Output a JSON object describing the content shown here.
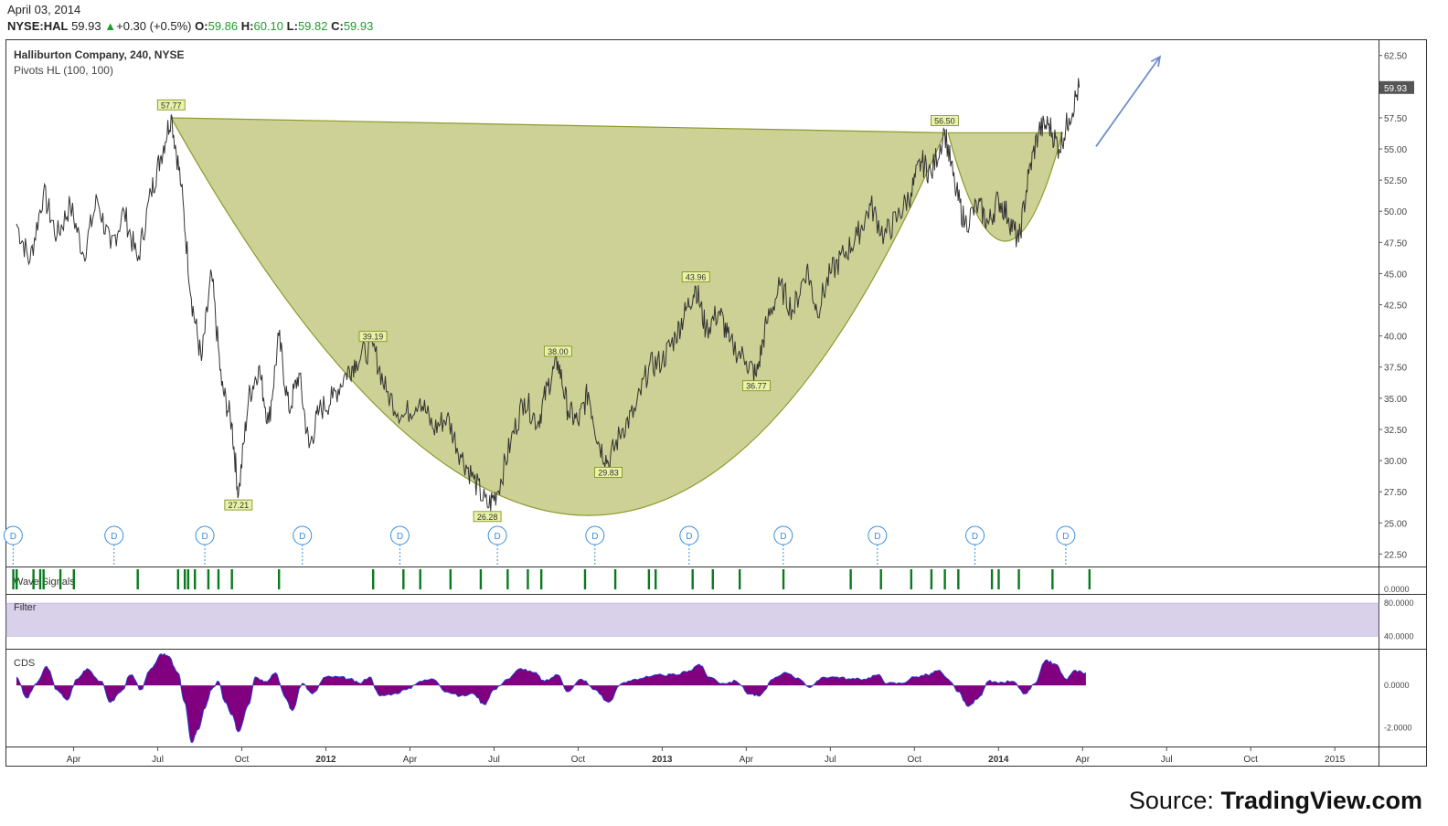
{
  "header": {
    "date": "April 03, 2014",
    "symbol": "NYSE:HAL",
    "last": "59.93",
    "change": "+0.30 (+0.5%)",
    "open_label": "O:",
    "open": "59.86",
    "high_label": "H:",
    "high": "60.10",
    "low_label": "L:",
    "low": "59.82",
    "close_label": "C:",
    "close": "59.93"
  },
  "chart_data": {
    "type": "line",
    "title": "Halliburton Company, 240, NYSE",
    "subtitle": "Pivots HL (100, 100)",
    "last_price_label": "59.93",
    "ylim": [
      21.5,
      63.8
    ],
    "y_ticks": [
      22.5,
      25.0,
      27.5,
      30.0,
      32.5,
      35.0,
      37.5,
      40.0,
      42.5,
      45.0,
      47.5,
      50.0,
      52.5,
      55.0,
      57.5,
      60.0,
      62.5
    ],
    "x_ticks": [
      {
        "label": "Apr",
        "t": 2011.25,
        "bold": false
      },
      {
        "label": "Jul",
        "t": 2011.5,
        "bold": false
      },
      {
        "label": "Oct",
        "t": 2011.75,
        "bold": false
      },
      {
        "label": "2012",
        "t": 2012.0,
        "bold": true
      },
      {
        "label": "Apr",
        "t": 2012.25,
        "bold": false
      },
      {
        "label": "Jul",
        "t": 2012.5,
        "bold": false
      },
      {
        "label": "Oct",
        "t": 2012.75,
        "bold": false
      },
      {
        "label": "2013",
        "t": 2013.0,
        "bold": true
      },
      {
        "label": "Apr",
        "t": 2013.25,
        "bold": false
      },
      {
        "label": "Jul",
        "t": 2013.5,
        "bold": false
      },
      {
        "label": "Oct",
        "t": 2013.75,
        "bold": false
      },
      {
        "label": "2014",
        "t": 2014.0,
        "bold": true
      },
      {
        "label": "Apr",
        "t": 2014.25,
        "bold": false
      },
      {
        "label": "Jul",
        "t": 2014.5,
        "bold": false
      },
      {
        "label": "Oct",
        "t": 2014.75,
        "bold": false
      },
      {
        "label": "2015",
        "t": 2015.0,
        "bold": false
      }
    ],
    "price_path": [
      [
        2011.08,
        49.0
      ],
      [
        2011.12,
        46.0
      ],
      [
        2011.16,
        51.5
      ],
      [
        2011.2,
        48.0
      ],
      [
        2011.24,
        50.5
      ],
      [
        2011.28,
        46.5
      ],
      [
        2011.32,
        51.0
      ],
      [
        2011.36,
        47.0
      ],
      [
        2011.4,
        50.0
      ],
      [
        2011.44,
        46.0
      ],
      [
        2011.48,
        51.5
      ],
      [
        2011.51,
        54.5
      ],
      [
        2011.54,
        57.77
      ],
      [
        2011.57,
        52.0
      ],
      [
        2011.6,
        43.0
      ],
      [
        2011.63,
        38.0
      ],
      [
        2011.66,
        45.0
      ],
      [
        2011.69,
        36.0
      ],
      [
        2011.72,
        33.0
      ],
      [
        2011.74,
        27.21
      ],
      [
        2011.77,
        35.0
      ],
      [
        2011.8,
        37.5
      ],
      [
        2011.83,
        33.0
      ],
      [
        2011.86,
        40.0
      ],
      [
        2011.89,
        34.0
      ],
      [
        2011.92,
        37.0
      ],
      [
        2011.95,
        31.0
      ],
      [
        2011.98,
        34.0
      ],
      [
        2012.02,
        35.0
      ],
      [
        2012.06,
        37.0
      ],
      [
        2012.09,
        38.0
      ],
      [
        2012.14,
        39.19
      ],
      [
        2012.18,
        35.5
      ],
      [
        2012.23,
        33.5
      ],
      [
        2012.28,
        35.0
      ],
      [
        2012.32,
        32.5
      ],
      [
        2012.36,
        33.5
      ],
      [
        2012.4,
        30.5
      ],
      [
        2012.44,
        28.5
      ],
      [
        2012.48,
        26.28
      ],
      [
        2012.51,
        27.5
      ],
      [
        2012.55,
        31.5
      ],
      [
        2012.59,
        35.0
      ],
      [
        2012.63,
        33.0
      ],
      [
        2012.66,
        36.0
      ],
      [
        2012.69,
        38.0
      ],
      [
        2012.72,
        34.0
      ],
      [
        2012.75,
        33.0
      ],
      [
        2012.78,
        35.5
      ],
      [
        2012.81,
        31.5
      ],
      [
        2012.84,
        29.83
      ],
      [
        2012.88,
        32.5
      ],
      [
        2012.92,
        34.0
      ],
      [
        2012.96,
        37.5
      ],
      [
        2013.0,
        38.0
      ],
      [
        2013.04,
        40.0
      ],
      [
        2013.07,
        42.0
      ],
      [
        2013.1,
        43.96
      ],
      [
        2013.13,
        40.5
      ],
      [
        2013.17,
        42.0
      ],
      [
        2013.2,
        39.5
      ],
      [
        2013.25,
        38.0
      ],
      [
        2013.28,
        36.77
      ],
      [
        2013.31,
        41.0
      ],
      [
        2013.35,
        44.0
      ],
      [
        2013.39,
        42.0
      ],
      [
        2013.43,
        45.5
      ],
      [
        2013.46,
        42.0
      ],
      [
        2013.5,
        45.0
      ],
      [
        2013.54,
        46.5
      ],
      [
        2013.58,
        48.0
      ],
      [
        2013.62,
        50.5
      ],
      [
        2013.66,
        48.0
      ],
      [
        2013.7,
        49.5
      ],
      [
        2013.74,
        51.5
      ],
      [
        2013.77,
        54.0
      ],
      [
        2013.8,
        53.0
      ],
      [
        2013.84,
        56.5
      ],
      [
        2013.87,
        52.0
      ],
      [
        2013.9,
        49.0
      ],
      [
        2013.94,
        50.5
      ],
      [
        2013.97,
        49.0
      ],
      [
        2014.0,
        51.0
      ],
      [
        2014.03,
        49.5
      ],
      [
        2014.06,
        47.5
      ],
      [
        2014.09,
        53.0
      ],
      [
        2014.12,
        56.5
      ],
      [
        2014.15,
        57.0
      ],
      [
        2014.18,
        55.0
      ],
      [
        2014.21,
        57.5
      ],
      [
        2014.24,
        59.93
      ]
    ],
    "pivots": [
      {
        "t": 2011.54,
        "price": 57.77,
        "type": "high",
        "label": "57.77"
      },
      {
        "t": 2011.74,
        "price": 27.21,
        "type": "low",
        "label": "27.21"
      },
      {
        "t": 2012.14,
        "price": 39.19,
        "type": "high",
        "label": "39.19"
      },
      {
        "t": 2012.48,
        "price": 26.28,
        "type": "low",
        "label": "26.28"
      },
      {
        "t": 2012.69,
        "price": 38.0,
        "type": "high",
        "label": "38.00"
      },
      {
        "t": 2012.84,
        "price": 29.83,
        "type": "low",
        "label": "29.83"
      },
      {
        "t": 2013.1,
        "price": 43.96,
        "type": "high",
        "label": "43.96"
      },
      {
        "t": 2013.28,
        "price": 36.77,
        "type": "low",
        "label": "36.77"
      },
      {
        "t": 2013.84,
        "price": 56.5,
        "type": "high",
        "label": "56.50"
      }
    ],
    "cup_pattern": {
      "rim_left": [
        2011.54,
        57.5
      ],
      "bottom": [
        2012.77,
        25.6
      ],
      "rim_right": [
        2013.84,
        56.3
      ]
    },
    "handle_pattern": {
      "left": [
        2013.85,
        56.3
      ],
      "bottom": [
        2014.02,
        47.6
      ],
      "right": [
        2014.19,
        56.3
      ]
    },
    "arrow": {
      "from": [
        2014.29,
        55.2
      ],
      "to": [
        2014.48,
        62.4
      ]
    },
    "dividend_marker": "D",
    "dividends": [
      2011.07,
      2011.37,
      2011.64,
      2011.93,
      2012.22,
      2012.51,
      2012.8,
      2013.08,
      2013.36,
      2013.64,
      2013.93,
      2014.2
    ],
    "wave_signals": {
      "label": "Wave Signals",
      "ytick": "0.0000",
      "t": [
        2011.07,
        2011.08,
        2011.13,
        2011.15,
        2011.16,
        2011.21,
        2011.25,
        2011.44,
        2011.56,
        2011.58,
        2011.59,
        2011.61,
        2011.65,
        2011.68,
        2011.72,
        2011.86,
        2012.14,
        2012.23,
        2012.28,
        2012.37,
        2012.46,
        2012.54,
        2012.6,
        2012.64,
        2012.77,
        2012.86,
        2012.96,
        2012.98,
        2013.09,
        2013.15,
        2013.23,
        2013.36,
        2013.56,
        2013.65,
        2013.74,
        2013.8,
        2013.84,
        2013.88,
        2013.98,
        2014.0,
        2014.06,
        2014.16,
        2014.27
      ]
    },
    "filter": {
      "label": "Filter",
      "yticks": [
        "80.0000",
        "40.0000"
      ],
      "band": [
        80.0,
        40.0
      ],
      "ylim": [
        25,
        90
      ]
    },
    "cds": {
      "label": "CDS",
      "yticks": [
        0.0,
        -2.0
      ],
      "ytick_labels": [
        "0.0000",
        "-2.0000"
      ],
      "ylim": [
        -2.9,
        1.7
      ],
      "values": [
        [
          2011.08,
          0.4
        ],
        [
          2011.11,
          -0.6
        ],
        [
          2011.14,
          0.1
        ],
        [
          2011.17,
          0.9
        ],
        [
          2011.2,
          -0.2
        ],
        [
          2011.23,
          -0.7
        ],
        [
          2011.26,
          0.3
        ],
        [
          2011.29,
          0.8
        ],
        [
          2011.33,
          0.2
        ],
        [
          2011.36,
          -0.8
        ],
        [
          2011.39,
          -0.3
        ],
        [
          2011.42,
          0.5
        ],
        [
          2011.45,
          -0.2
        ],
        [
          2011.48,
          0.8
        ],
        [
          2011.51,
          1.5
        ],
        [
          2011.53,
          1.4
        ],
        [
          2011.56,
          0.6
        ],
        [
          2011.58,
          -0.8
        ],
        [
          2011.6,
          -2.7
        ],
        [
          2011.62,
          -2.1
        ],
        [
          2011.64,
          -1.1
        ],
        [
          2011.66,
          -0.2
        ],
        [
          2011.68,
          0.2
        ],
        [
          2011.7,
          -0.8
        ],
        [
          2011.72,
          -1.4
        ],
        [
          2011.74,
          -2.2
        ],
        [
          2011.77,
          -0.9
        ],
        [
          2011.79,
          0.4
        ],
        [
          2011.82,
          0.2
        ],
        [
          2011.85,
          0.6
        ],
        [
          2011.88,
          -0.6
        ],
        [
          2011.9,
          -1.2
        ],
        [
          2011.93,
          0.1
        ],
        [
          2011.96,
          -0.4
        ],
        [
          2012.0,
          0.4
        ],
        [
          2012.04,
          0.4
        ],
        [
          2012.07,
          0.3
        ],
        [
          2012.1,
          0.1
        ],
        [
          2012.13,
          0.4
        ],
        [
          2012.16,
          -0.5
        ],
        [
          2012.2,
          -0.4
        ],
        [
          2012.24,
          -0.2
        ],
        [
          2012.28,
          0.2
        ],
        [
          2012.32,
          0.3
        ],
        [
          2012.36,
          -0.3
        ],
        [
          2012.4,
          -0.5
        ],
        [
          2012.44,
          -0.4
        ],
        [
          2012.47,
          -0.9
        ],
        [
          2012.5,
          -0.2
        ],
        [
          2012.54,
          0.3
        ],
        [
          2012.58,
          0.8
        ],
        [
          2012.62,
          0.6
        ],
        [
          2012.65,
          0.2
        ],
        [
          2012.69,
          0.5
        ],
        [
          2012.72,
          -0.3
        ],
        [
          2012.76,
          0.3
        ],
        [
          2012.8,
          -0.2
        ],
        [
          2012.84,
          -0.8
        ],
        [
          2012.88,
          0.1
        ],
        [
          2012.92,
          0.3
        ],
        [
          2012.96,
          0.4
        ],
        [
          2013.0,
          0.5
        ],
        [
          2013.04,
          0.5
        ],
        [
          2013.08,
          0.7
        ],
        [
          2013.11,
          1.0
        ],
        [
          2013.14,
          0.4
        ],
        [
          2013.18,
          0.1
        ],
        [
          2013.22,
          0.2
        ],
        [
          2013.26,
          -0.4
        ],
        [
          2013.29,
          -0.5
        ],
        [
          2013.33,
          0.3
        ],
        [
          2013.37,
          0.6
        ],
        [
          2013.41,
          0.3
        ],
        [
          2013.44,
          -0.1
        ],
        [
          2013.48,
          0.4
        ],
        [
          2013.52,
          0.4
        ],
        [
          2013.56,
          0.3
        ],
        [
          2013.6,
          0.3
        ],
        [
          2013.64,
          0.5
        ],
        [
          2013.67,
          0.1
        ],
        [
          2013.71,
          0.1
        ],
        [
          2013.75,
          0.4
        ],
        [
          2013.79,
          0.5
        ],
        [
          2013.82,
          0.7
        ],
        [
          2013.85,
          0.3
        ],
        [
          2013.88,
          -0.3
        ],
        [
          2013.91,
          -1.0
        ],
        [
          2013.94,
          -0.6
        ],
        [
          2013.97,
          0.2
        ],
        [
          2014.0,
          0.1
        ],
        [
          2014.04,
          0.2
        ],
        [
          2014.08,
          -0.4
        ],
        [
          2014.11,
          0.1
        ],
        [
          2014.14,
          1.2
        ],
        [
          2014.17,
          1.0
        ],
        [
          2014.2,
          0.3
        ],
        [
          2014.23,
          0.7
        ],
        [
          2014.26,
          0.6
        ]
      ]
    }
  },
  "footer": {
    "source_prefix": "Source: ",
    "source_name": "TradingView.com"
  },
  "colors": {
    "cup_fill": "#c8cc8a",
    "cup_stroke": "#8c9a2a",
    "price": "#333333",
    "wave": "#0a7a1e",
    "filter_band": "#d9d0ea",
    "cds_fill": "#800080",
    "cds_line": "#2838c8",
    "dividend": "#3a8ed8",
    "arrow": "#6f8fc8"
  }
}
